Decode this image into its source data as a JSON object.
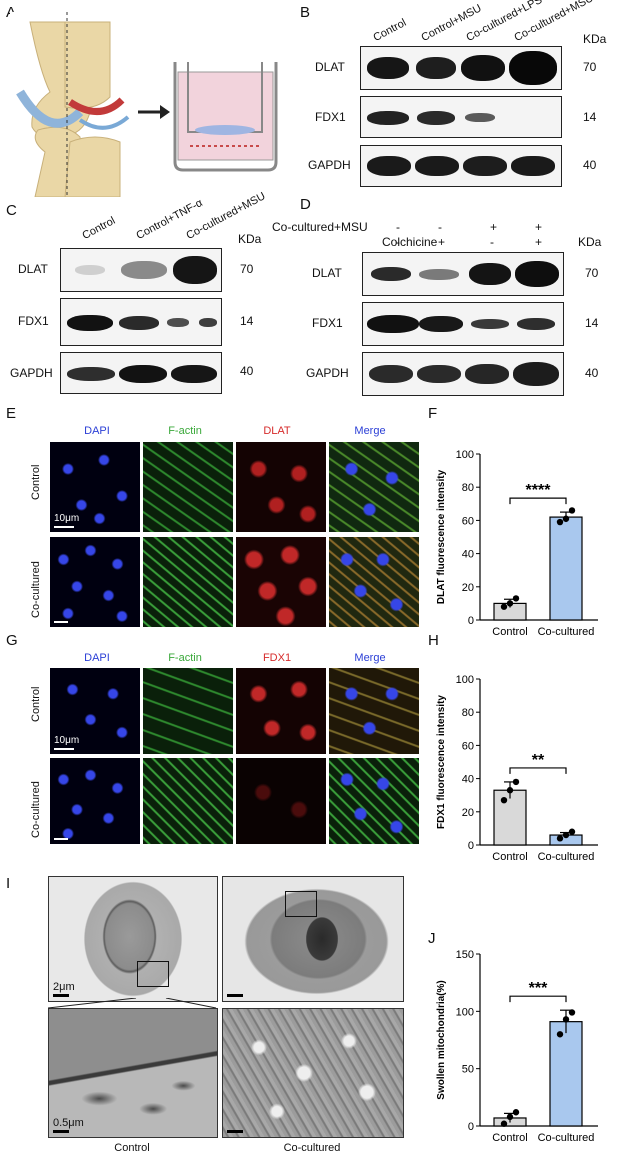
{
  "panels": {
    "A": "A",
    "B": "B",
    "C": "C",
    "D": "D",
    "E": "E",
    "F": "F",
    "G": "G",
    "H": "H",
    "I": "I",
    "J": "J"
  },
  "blot_B": {
    "lanes": [
      "Control",
      "Control+MSU",
      "Co-cultured+LPS",
      "Co-cultured+MSU"
    ],
    "unit": "KDa",
    "rows": [
      {
        "name": "DLAT",
        "kda": "70"
      },
      {
        "name": "FDX1",
        "kda": "14"
      },
      {
        "name": "GAPDH",
        "kda": "40"
      }
    ]
  },
  "blot_C": {
    "lanes": [
      "Control",
      "Control+TNF-α",
      "Co-cultured+MSU"
    ],
    "unit": "KDa",
    "rows": [
      {
        "name": "DLAT",
        "kda": "70"
      },
      {
        "name": "FDX1",
        "kda": "14"
      },
      {
        "name": "GAPDH",
        "kda": "40"
      }
    ]
  },
  "blot_D": {
    "conditions": [
      {
        "name": "Co-cultured+MSU",
        "signs": [
          "-",
          "-",
          "+",
          "+"
        ]
      },
      {
        "name": "Colchicine",
        "signs": [
          "-",
          "+",
          "-",
          "+"
        ]
      }
    ],
    "unit": "KDa",
    "rows": [
      {
        "name": "DLAT",
        "kda": "70"
      },
      {
        "name": "FDX1",
        "kda": "14"
      },
      {
        "name": "GAPDH",
        "kda": "40"
      }
    ]
  },
  "if_E": {
    "channels": [
      "DAPI",
      "F-actin",
      "DLAT",
      "Merge"
    ],
    "channel_colors": [
      "#2b3fd6",
      "#3aa83a",
      "#d62b2b",
      "#2b3fd6"
    ],
    "rows": [
      "Control",
      "Co-cultured"
    ],
    "scale": "10μm"
  },
  "if_G": {
    "channels": [
      "DAPI",
      "F-actin",
      "FDX1",
      "Merge"
    ],
    "channel_colors": [
      "#2b3fd6",
      "#3aa83a",
      "#d62b2b",
      "#2b3fd6"
    ],
    "rows": [
      "Control",
      "Co-cultured"
    ],
    "scale": "10μm"
  },
  "em_I": {
    "scale_top": "2μm",
    "scale_bottom": "0.5μm",
    "columns": [
      "Control",
      "Co-cultured"
    ]
  },
  "chart_data": [
    {
      "panel": "F",
      "type": "bar",
      "categories": [
        "Control",
        "Co-cultured"
      ],
      "values": [
        10,
        62
      ],
      "errors": [
        2.5,
        3
      ],
      "points": [
        [
          8,
          10,
          13
        ],
        [
          59,
          61,
          66
        ]
      ],
      "colors": [
        "#d9d9d9",
        "#a9c8ee"
      ],
      "ylabel": "DLAT fluorescence intensity",
      "ylim": [
        0,
        100
      ],
      "yticks": [
        0,
        20,
        40,
        60,
        80,
        100
      ],
      "significance": "****"
    },
    {
      "panel": "H",
      "type": "bar",
      "categories": [
        "Control",
        "Co-cultured"
      ],
      "values": [
        33,
        6
      ],
      "errors": [
        5,
        1.5
      ],
      "points": [
        [
          27,
          33,
          38
        ],
        [
          4,
          6,
          8
        ]
      ],
      "colors": [
        "#d9d9d9",
        "#a9c8ee"
      ],
      "ylabel": "FDX1 fluorescence intensity",
      "ylim": [
        0,
        100
      ],
      "yticks": [
        0,
        20,
        40,
        60,
        80,
        100
      ],
      "significance": "**"
    },
    {
      "panel": "J",
      "type": "bar",
      "categories": [
        "Control",
        "Co-cultured"
      ],
      "values": [
        7,
        91
      ],
      "errors": [
        4,
        10
      ],
      "points": [
        [
          2,
          8,
          12
        ],
        [
          80,
          93,
          99
        ]
      ],
      "colors": [
        "#d9d9d9",
        "#a9c8ee"
      ],
      "ylabel": "Swollen mitochondria(%)",
      "ylim": [
        0,
        150
      ],
      "yticks": [
        0,
        50,
        100,
        150
      ],
      "significance": "***"
    }
  ]
}
